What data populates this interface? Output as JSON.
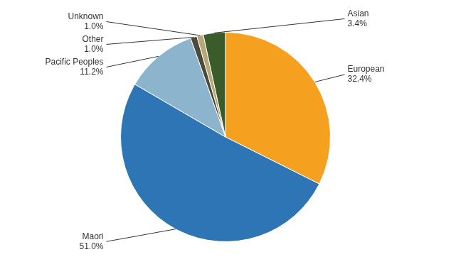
{
  "chart_data": {
    "type": "pie",
    "categories": [
      "European",
      "Maori",
      "Pacific Peoples",
      "Other",
      "Unknown",
      "Asian"
    ],
    "values": [
      32.4,
      51.0,
      11.2,
      1.0,
      1.0,
      3.4
    ],
    "value_labels": [
      "32.4%",
      "51.0%",
      "11.2%",
      "1.0%",
      "1.0%",
      "3.4%"
    ],
    "colors": [
      "#F5A11F",
      "#2E75B6",
      "#8CB4CC",
      "#4A4A3A",
      "#B8A878",
      "#3A5C2A"
    ],
    "data_labels": true
  }
}
